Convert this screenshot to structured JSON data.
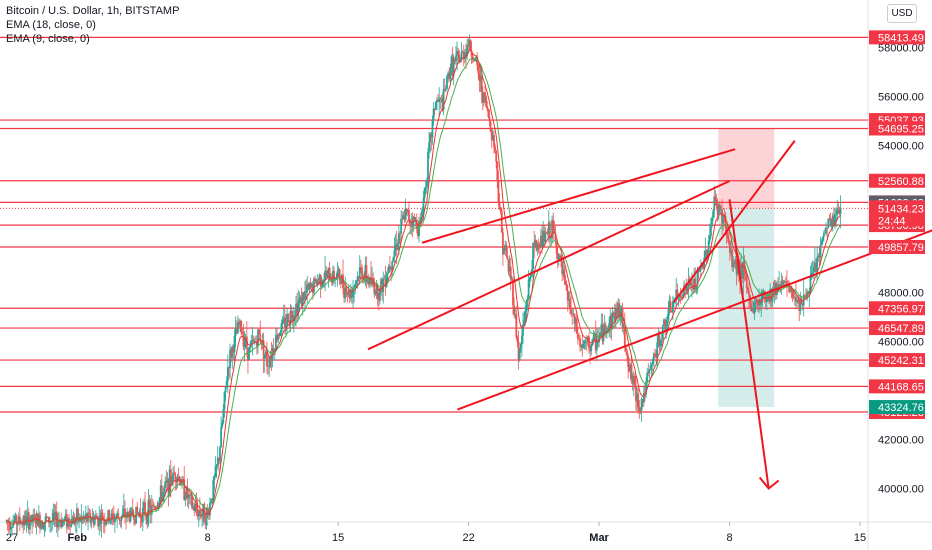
{
  "legend": {
    "symbol": "Bitcoin / U.S. Dollar, 1h, BITSTAMP",
    "ema18": "EMA (18, close, 0)",
    "ema9": "EMA (9, close, 0)"
  },
  "currency_button": "USD",
  "colors": {
    "level_line": "#f23645",
    "up_candle": "#26a69a",
    "down_candle": "#ef5350",
    "ema_fast": "#e53935",
    "ema_slow": "#4caf50",
    "stop_zone": "rgba(242,54,69,0.22)",
    "target_zone": "rgba(38,166,154,0.20)",
    "current_price": "#f23645",
    "prev_close": "#5d606b",
    "target_label": "#089981"
  },
  "chart_data": {
    "type": "candlestick",
    "title": "Bitcoin / U.S. Dollar, 1h, BITSTAMP",
    "indicators": [
      "EMA (18, close, 0)",
      "EMA (9, close, 0)"
    ],
    "y_axis": {
      "ticks": [
        "58000.00",
        "56000.00",
        "54000.00",
        "48000.00",
        "46000.00",
        "42000.00",
        "40000.00"
      ],
      "tick_values": [
        58000,
        56000,
        54000,
        48000,
        46000,
        42000,
        40000
      ],
      "range": [
        38600,
        59000
      ]
    },
    "x_axis": {
      "tick_labels": [
        "27",
        "Feb",
        "8",
        "15",
        "22",
        "Mar",
        "8",
        "15"
      ],
      "tick_days": [
        -2.5,
        1,
        8,
        15,
        22,
        29,
        36,
        43
      ],
      "range": [
        -3,
        45.5
      ],
      "unit": "days since Jan 31"
    },
    "horizontal_levels": [
      {
        "value": 58413.49,
        "label": "58413.49"
      },
      {
        "value": 55037.93,
        "label": "55037.93"
      },
      {
        "value": 54695.25,
        "label": "54695.25"
      },
      {
        "value": 52560.88,
        "label": "52560.88"
      },
      {
        "value": 51678.24,
        "label": "51678.24"
      },
      {
        "value": 50750.98,
        "label": "50750.98"
      },
      {
        "value": 49857.79,
        "label": "49857.79"
      },
      {
        "value": 47356.97,
        "label": "47356.97"
      },
      {
        "value": 46547.89,
        "label": "46547.89"
      },
      {
        "value": 45242.31,
        "label": "45242.31"
      },
      {
        "value": 44168.65,
        "label": "44168.65"
      },
      {
        "value": 43122.23,
        "label": "43122.23"
      }
    ],
    "current_price": {
      "value": 51434.23,
      "label": "51434.23",
      "countdown": "24:44"
    },
    "previous_close": {
      "value": 51628.62,
      "label": "51628.62"
    },
    "position": {
      "entry": 51434.23,
      "stop": 54695.25,
      "target": 43324.76,
      "target_label": "43324.76",
      "start_day": 35.4,
      "end_day": 38.4
    },
    "trend_lines": [
      {
        "x": [
          19.5,
          36.3
        ],
        "y": [
          50030,
          53850
        ]
      },
      {
        "x": [
          16.6,
          36.0
        ],
        "y": [
          45680,
          52550
        ]
      },
      {
        "x": [
          33.0,
          39.5
        ],
        "y": [
          47600,
          54200
        ]
      },
      {
        "x": [
          21.4,
          48.0
        ],
        "y": [
          43220,
          50860
        ]
      }
    ],
    "projection_arrow": {
      "x": [
        36.0,
        38.1
      ],
      "y": [
        51800,
        40000
      ]
    },
    "price_path": [
      [
        -2.8,
        38650
      ],
      [
        0,
        38700
      ],
      [
        3,
        38800
      ],
      [
        5,
        39100
      ],
      [
        6.3,
        40700
      ],
      [
        7.2,
        39200
      ],
      [
        8,
        38900
      ],
      [
        8.6,
        41300
      ],
      [
        9.1,
        45100
      ],
      [
        9.7,
        46700
      ],
      [
        10.2,
        45600
      ],
      [
        10.8,
        46300
      ],
      [
        11.2,
        45100
      ],
      [
        11.8,
        46400
      ],
      [
        13,
        47700
      ],
      [
        14,
        48600
      ],
      [
        15,
        48700
      ],
      [
        15.6,
        47900
      ],
      [
        16.2,
        48900
      ],
      [
        17.2,
        48000
      ],
      [
        18,
        49700
      ],
      [
        18.6,
        51200
      ],
      [
        19.4,
        50700
      ],
      [
        20.2,
        55800
      ],
      [
        20.6,
        55700
      ],
      [
        21,
        57200
      ],
      [
        21.6,
        57600
      ],
      [
        22,
        58200
      ],
      [
        22.4,
        57300
      ],
      [
        23,
        55400
      ],
      [
        23.4,
        54000
      ],
      [
        23.8,
        50200
      ],
      [
        24.3,
        48500
      ],
      [
        24.7,
        45300
      ],
      [
        25.5,
        49800
      ],
      [
        26.5,
        50600
      ],
      [
        27.3,
        47800
      ],
      [
        28,
        45800
      ],
      [
        28.7,
        45900
      ],
      [
        29.4,
        46600
      ],
      [
        30.1,
        47400
      ],
      [
        30.7,
        44600
      ],
      [
        31.2,
        43300
      ],
      [
        31.8,
        45000
      ],
      [
        32.4,
        46400
      ],
      [
        33,
        47600
      ],
      [
        33.6,
        48200
      ],
      [
        34.2,
        48300
      ],
      [
        34.8,
        49800
      ],
      [
        35.2,
        51700
      ],
      [
        35.7,
        51000
      ],
      [
        36.1,
        49300
      ],
      [
        36.7,
        48900
      ],
      [
        37.2,
        47300
      ],
      [
        37.7,
        47800
      ],
      [
        38.2,
        48000
      ],
      [
        38.8,
        48500
      ],
      [
        39.4,
        47900
      ],
      [
        40,
        47600
      ],
      [
        40.6,
        49000
      ],
      [
        41.2,
        50700
      ],
      [
        41.6,
        51000
      ],
      [
        42,
        51434
      ]
    ]
  }
}
